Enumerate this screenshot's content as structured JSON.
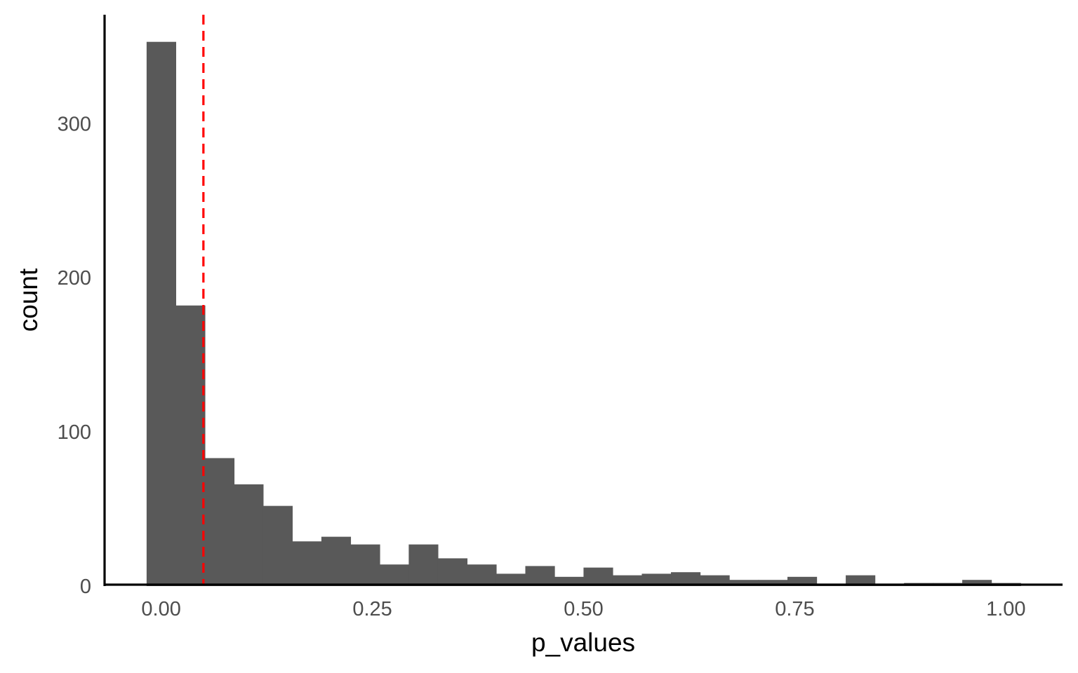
{
  "chart_data": {
    "type": "bar",
    "subtype": "histogram",
    "title": "",
    "xlabel": "p_values",
    "ylabel": "count",
    "bin_width": 0.0345,
    "bins": [
      {
        "x": 0.0,
        "count": 353
      },
      {
        "x": 0.0345,
        "count": 182
      },
      {
        "x": 0.069,
        "count": 83
      },
      {
        "x": 0.1034,
        "count": 66
      },
      {
        "x": 0.1379,
        "count": 52
      },
      {
        "x": 0.1724,
        "count": 29
      },
      {
        "x": 0.2069,
        "count": 32
      },
      {
        "x": 0.2414,
        "count": 27
      },
      {
        "x": 0.2759,
        "count": 14
      },
      {
        "x": 0.3103,
        "count": 27
      },
      {
        "x": 0.3448,
        "count": 18
      },
      {
        "x": 0.3793,
        "count": 14
      },
      {
        "x": 0.4138,
        "count": 8
      },
      {
        "x": 0.4483,
        "count": 13
      },
      {
        "x": 0.4828,
        "count": 6
      },
      {
        "x": 0.5172,
        "count": 12
      },
      {
        "x": 0.5517,
        "count": 7
      },
      {
        "x": 0.5862,
        "count": 8
      },
      {
        "x": 0.6207,
        "count": 9
      },
      {
        "x": 0.6552,
        "count": 7
      },
      {
        "x": 0.6897,
        "count": 4
      },
      {
        "x": 0.7241,
        "count": 4
      },
      {
        "x": 0.7586,
        "count": 6
      },
      {
        "x": 0.7931,
        "count": 1
      },
      {
        "x": 0.8276,
        "count": 7
      },
      {
        "x": 0.8621,
        "count": 1
      },
      {
        "x": 0.8966,
        "count": 2
      },
      {
        "x": 0.931,
        "count": 2
      },
      {
        "x": 0.9655,
        "count": 4
      },
      {
        "x": 1.0,
        "count": 2
      }
    ],
    "vline": {
      "x": 0.05,
      "style": "dashed",
      "color": "#ff0000"
    },
    "xlim": [
      -0.067,
      1.067
    ],
    "ylim": [
      0,
      370.6
    ],
    "xticks": [
      0,
      0.25,
      0.5,
      0.75,
      1.0
    ],
    "xtick_labels": [
      "0.00",
      "0.25",
      "0.50",
      "0.75",
      "1.00"
    ],
    "yticks": [
      0,
      100,
      200,
      300
    ],
    "ytick_labels": [
      "0",
      "100",
      "200",
      "300"
    ],
    "bar_color": "#595959",
    "grid": false,
    "legend": "none"
  }
}
